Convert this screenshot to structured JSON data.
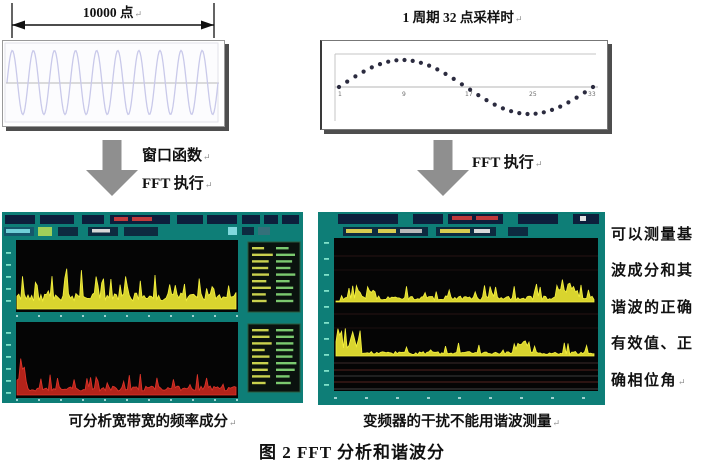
{
  "figure": {
    "top_left": {
      "dimension_label": "10000 点"
    },
    "top_right": {
      "title": "1 周期 32 点采样时",
      "axis_ticks": [
        "1",
        "9",
        "17",
        "25",
        "33"
      ]
    },
    "flow_left": {
      "line1": "窗口函数",
      "line2": "FFT 执行"
    },
    "flow_right": {
      "label": "FFT 执行"
    },
    "caption_left": "可分析宽带宽的频率成分",
    "caption_right": "变频器的干扰不能用谐波测量",
    "side_note_lines": [
      "可以测量基",
      "波成分和其",
      "谐波的正确",
      "有效值、正",
      "确相位角"
    ],
    "figure_caption": "图 2  FFT 分析和谐波分"
  },
  "return_mark": "↵",
  "colors": {
    "scope_teal": "#0e7e77",
    "trace_yellow": "#e2de34",
    "trace_red": "#c8271c",
    "arrow_gray": "#8f8f8f",
    "wave_lavender": "#c9c9ea"
  }
}
